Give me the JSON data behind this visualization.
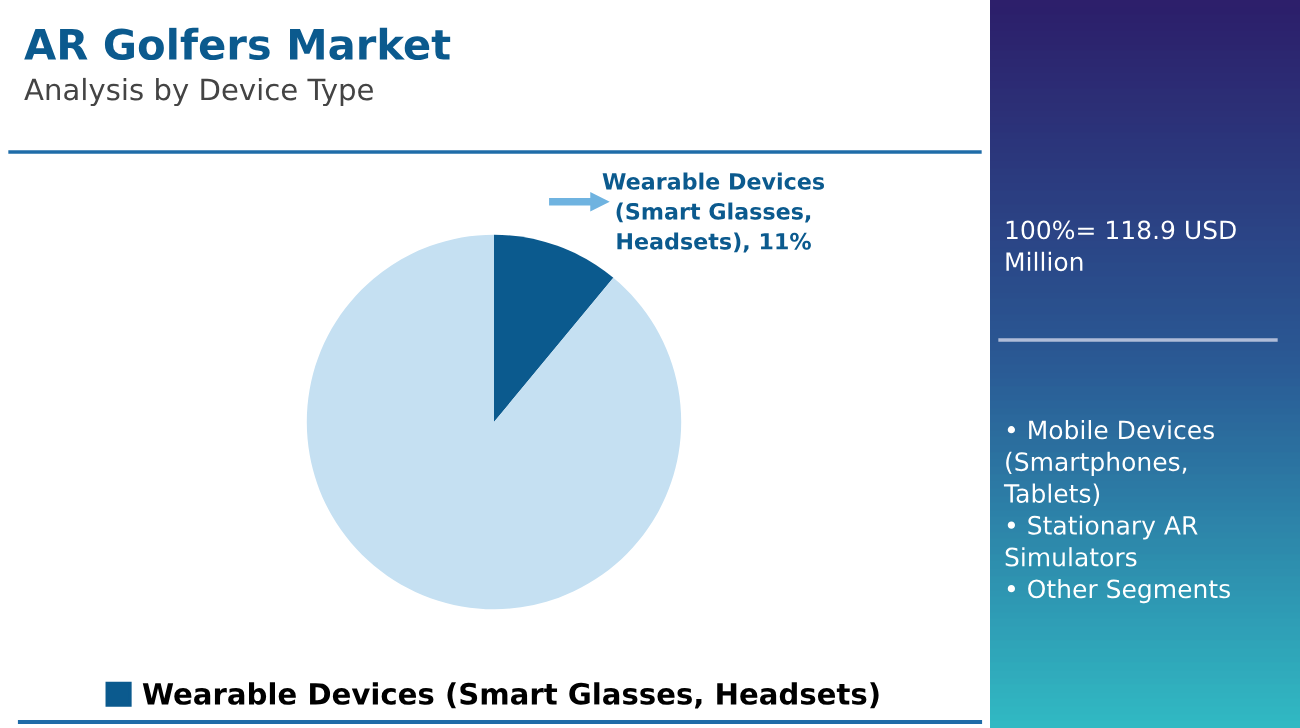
{
  "chart_data": {
    "type": "pie",
    "title": "AR Golfers Market",
    "subtitle": "Analysis by Device Type",
    "categories": [
      "Wearable Devices (Smart Glasses, Headsets)",
      null
    ],
    "values": [
      11,
      89
    ],
    "colors": [
      "#0b5a8e",
      "#c5e0f2"
    ],
    "value_labels": [
      "Wearable Devices\n(Smart Glasses,\nHeadsets), 11%",
      null
    ],
    "legend": "bottom",
    "annotations": [
      "100%= 118.9 USD\nMillion",
      "• Mobile Devices\n(Smartphones,\nTablets)\n• Stationary AR\nSimulators\n• Other Segments"
    ]
  }
}
